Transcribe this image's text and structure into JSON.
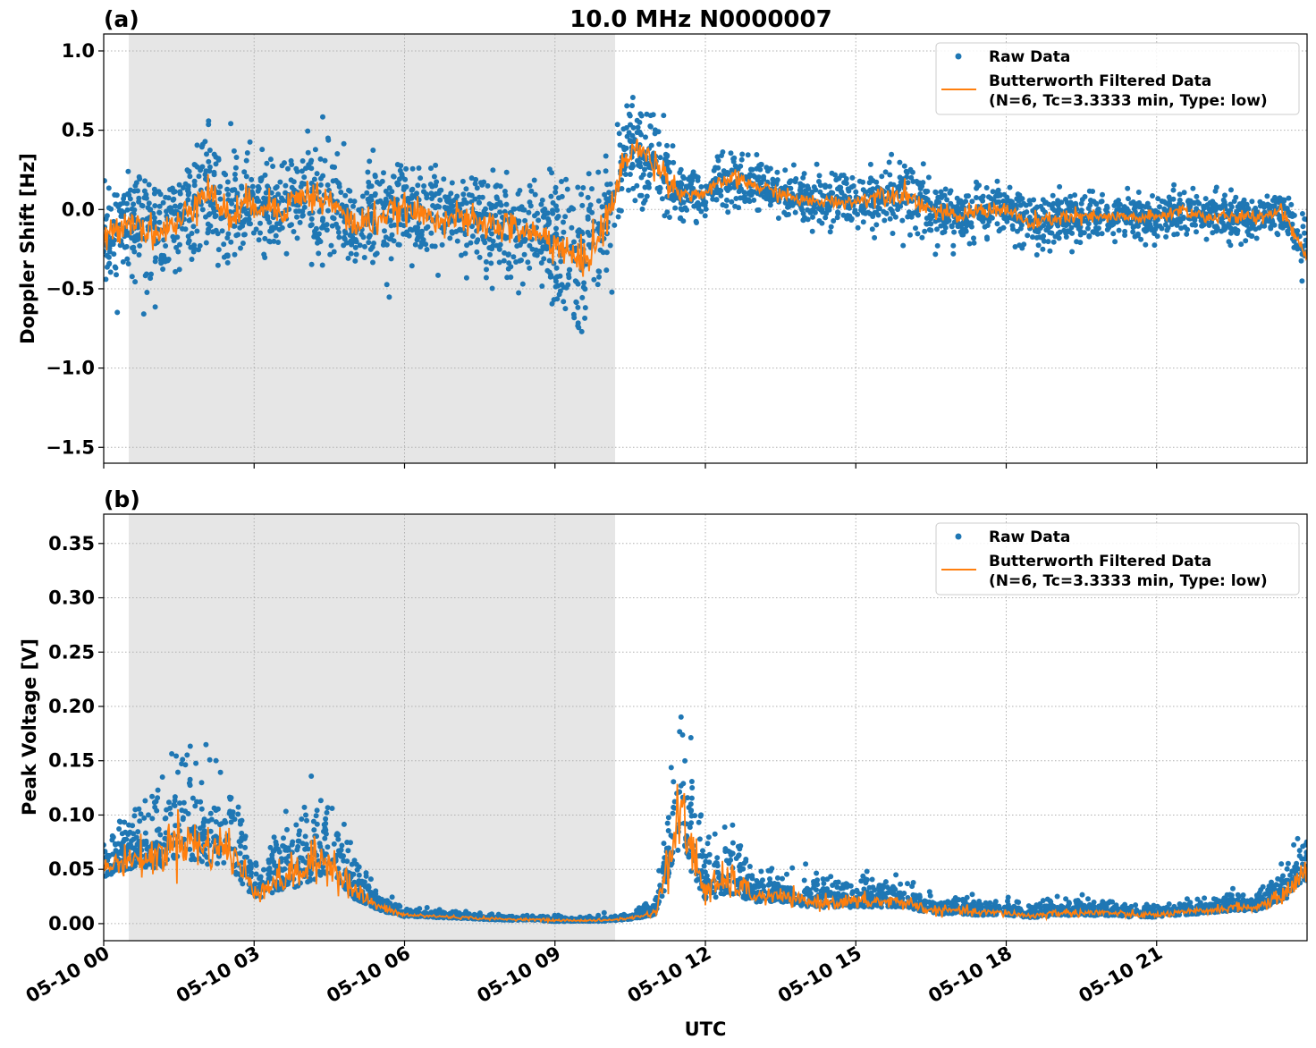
{
  "chart_data": [
    {
      "type": "scatter+line",
      "panel_label": "(a)",
      "title": "10.0 MHz N0000007",
      "xlabel": "",
      "ylabel": "Doppler Shift [Hz]",
      "xlim_hours": [
        0,
        24
      ],
      "ylim": [
        -1.6,
        1.107
      ],
      "yticks": [
        1.0,
        0.5,
        0.0,
        -0.5,
        -1.0,
        -1.5
      ],
      "ytick_labels": [
        "1.0",
        "0.5",
        "0.0",
        "−0.5",
        "−1.0",
        "−1.5"
      ],
      "grid": true,
      "shaded_region_hours": [
        0.5,
        10.2
      ],
      "legend": {
        "placement": "top-right",
        "entries": [
          "Raw Data",
          "Butterworth Filtered Data",
          "(N=6, Tc=3.3333 min, Type: low)"
        ]
      },
      "series": [
        {
          "name": "Butterworth Filtered Data",
          "x_step_hours": 0.5,
          "values": [
            -0.2,
            -0.05,
            -0.15,
            -0.1,
            0.15,
            -0.05,
            0.05,
            0.0,
            0.1,
            0.05,
            -0.1,
            -0.05,
            0.0,
            -0.05,
            -0.05,
            -0.1,
            -0.1,
            -0.15,
            -0.2,
            -0.35,
            -0.1,
            0.4,
            0.3,
            0.1,
            0.1,
            0.2,
            0.15,
            0.1,
            0.05,
            0.05,
            0.05,
            0.1,
            0.1,
            0.0,
            -0.05,
            0.0,
            0.0,
            -0.1,
            -0.05,
            -0.05,
            -0.05,
            -0.05,
            -0.05,
            0.0,
            -0.05,
            -0.05,
            -0.05,
            0.0,
            -0.3
          ]
        },
        {
          "name": "Raw Data",
          "spread_half_width": [
            0.25,
            0.3,
            0.3,
            0.3,
            0.35,
            0.35,
            0.3,
            0.3,
            0.3,
            0.3,
            0.3,
            0.3,
            0.25,
            0.25,
            0.25,
            0.3,
            0.3,
            0.3,
            0.35,
            0.4,
            0.35,
            0.3,
            0.3,
            0.15,
            0.12,
            0.15,
            0.15,
            0.12,
            0.12,
            0.12,
            0.12,
            0.18,
            0.2,
            0.15,
            0.15,
            0.15,
            0.15,
            0.15,
            0.15,
            0.15,
            0.12,
            0.12,
            0.12,
            0.12,
            0.12,
            0.12,
            0.12,
            0.12,
            0.2
          ]
        }
      ]
    },
    {
      "type": "scatter+line",
      "panel_label": "(b)",
      "xlabel": "UTC",
      "ylabel": "Peak Voltage [V]",
      "xlim_hours": [
        0,
        24
      ],
      "ylim": [
        -0.0157,
        0.377
      ],
      "yticks": [
        0.35,
        0.3,
        0.25,
        0.2,
        0.15,
        0.1,
        0.05,
        0.0
      ],
      "ytick_labels": [
        "0.35",
        "0.30",
        "0.25",
        "0.20",
        "0.15",
        "0.10",
        "0.05",
        "0.00"
      ],
      "xticks_hours": [
        0,
        3,
        6,
        9,
        12,
        15,
        18,
        21
      ],
      "xtick_labels": [
        "05-10 00",
        "05-10 03",
        "05-10 06",
        "05-10 09",
        "05-10 12",
        "05-10 15",
        "05-10 18",
        "05-10 21"
      ],
      "grid": true,
      "shaded_region_hours": [
        0.5,
        10.2
      ],
      "legend": {
        "placement": "top-right",
        "entries": [
          "Raw Data",
          "Butterworth Filtered Data",
          "(N=6, Tc=3.3333 min, Type: low)"
        ]
      },
      "series": [
        {
          "name": "Butterworth Filtered Data",
          "x_step_hours": 0.5,
          "values": [
            0.05,
            0.06,
            0.06,
            0.08,
            0.07,
            0.07,
            0.03,
            0.04,
            0.05,
            0.06,
            0.03,
            0.015,
            0.008,
            0.007,
            0.006,
            0.005,
            0.004,
            0.004,
            0.003,
            0.003,
            0.003,
            0.005,
            0.01,
            0.1,
            0.03,
            0.04,
            0.025,
            0.025,
            0.02,
            0.02,
            0.02,
            0.02,
            0.02,
            0.012,
            0.012,
            0.01,
            0.01,
            0.007,
            0.01,
            0.01,
            0.01,
            0.008,
            0.008,
            0.01,
            0.012,
            0.015,
            0.015,
            0.025,
            0.05
          ]
        },
        {
          "name": "Raw Data",
          "spread_half_width": [
            0.03,
            0.04,
            0.05,
            0.07,
            0.06,
            0.07,
            0.03,
            0.04,
            0.06,
            0.06,
            0.03,
            0.012,
            0.006,
            0.005,
            0.004,
            0.004,
            0.003,
            0.003,
            0.004,
            0.003,
            0.003,
            0.004,
            0.01,
            0.12,
            0.04,
            0.05,
            0.02,
            0.02,
            0.02,
            0.02,
            0.02,
            0.02,
            0.02,
            0.012,
            0.012,
            0.01,
            0.01,
            0.008,
            0.01,
            0.01,
            0.01,
            0.008,
            0.008,
            0.008,
            0.01,
            0.012,
            0.012,
            0.02,
            0.04
          ]
        }
      ]
    }
  ],
  "colors": {
    "raw": "#1f77b4",
    "filtered": "#ff7f0e",
    "shade": "#e6e6e6",
    "grid": "#b0b0b0"
  }
}
